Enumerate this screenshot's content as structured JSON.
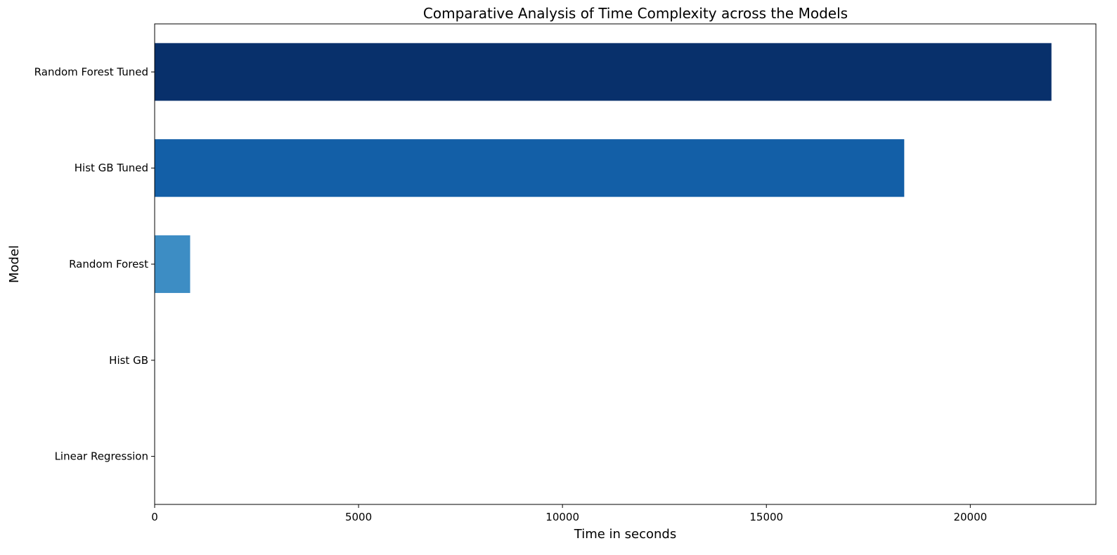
{
  "chart_data": {
    "type": "bar",
    "orientation": "horizontal",
    "title": "Comparative Analysis of Time Complexity across the Models",
    "xlabel": "Time in seconds",
    "ylabel": "Model",
    "categories": [
      "Linear Regression",
      "Hist GB",
      "Random Forest",
      "Hist GB Tuned",
      "Random Forest Tuned"
    ],
    "values": [
      1,
      10,
      870,
      18380,
      21990
    ],
    "colors": [
      "#d0e1f2",
      "#94c4df",
      "#3d8dc4",
      "#135fa7",
      "#08306b"
    ],
    "xlim": [
      0,
      23080
    ],
    "xticks": [
      0,
      5000,
      10000,
      15000,
      20000
    ],
    "grid": false,
    "legend": "none"
  }
}
